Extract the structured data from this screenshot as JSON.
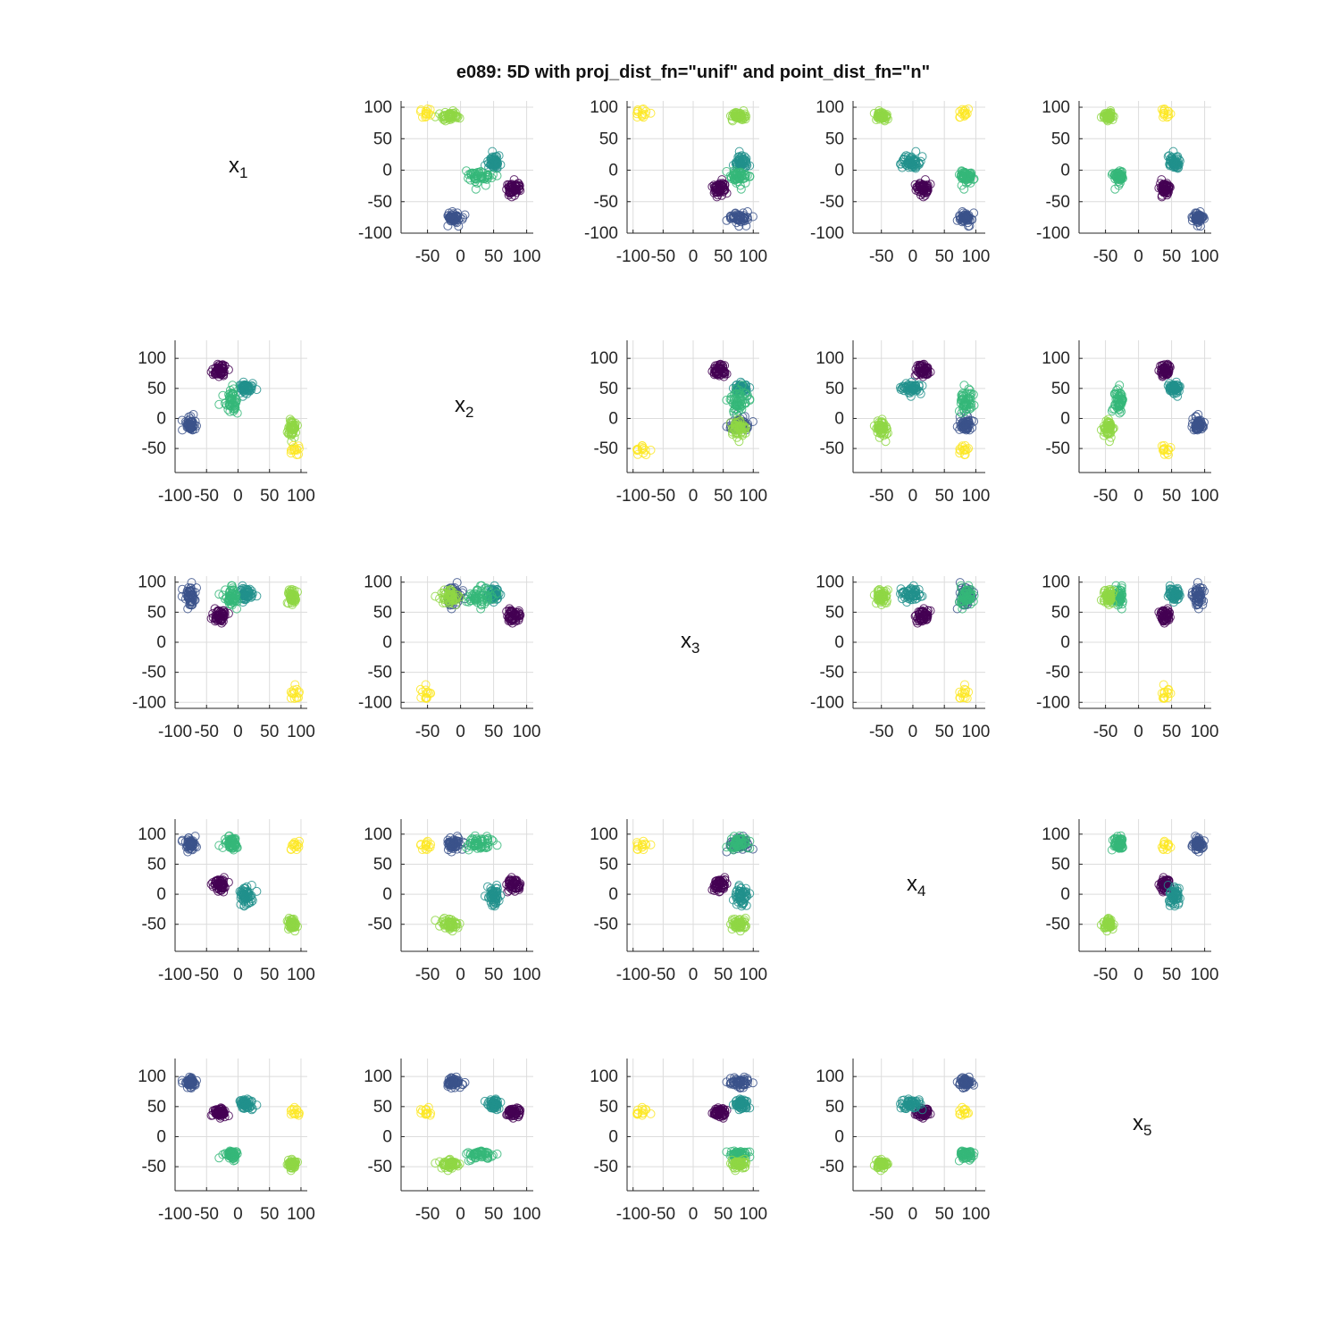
{
  "chart_data": {
    "type": "scatter",
    "title": "e089: 5D with proj_dist_fn=\"unif\" and point_dist_fn=\"n\"",
    "variables": [
      {
        "name": "x",
        "sub": "1"
      },
      {
        "name": "x",
        "sub": "2"
      },
      {
        "name": "x",
        "sub": "3"
      },
      {
        "name": "x",
        "sub": "4"
      },
      {
        "name": "x",
        "sub": "5"
      }
    ],
    "grid": true,
    "clusters": [
      {
        "color": "#440154",
        "center": [
          -30,
          80,
          45,
          15,
          40
        ],
        "spread": [
          6,
          5,
          5,
          6,
          4
        ]
      },
      {
        "color": "#3b528b",
        "center": [
          -75,
          -10,
          75,
          85,
          90
        ],
        "spread": [
          4,
          6,
          9,
          5,
          4
        ]
      },
      {
        "color": "#21918c",
        "center": [
          10,
          50,
          80,
          -3,
          55
        ],
        "spread": [
          6,
          5,
          6,
          8,
          4
        ]
      },
      {
        "color": "#35b779",
        "center": [
          -10,
          30,
          75,
          85,
          -30
        ],
        "spread": [
          5,
          8,
          8,
          5,
          4
        ]
      },
      {
        "color": "#8fd744",
        "center": [
          85,
          -15,
          75,
          -50,
          -45
        ],
        "spread": [
          4,
          8,
          6,
          5,
          4
        ]
      },
      {
        "color": "#fde725",
        "center": [
          90,
          -50,
          -85,
          82,
          42
        ],
        "spread": [
          4,
          4,
          6,
          4,
          3
        ]
      }
    ],
    "axes": [
      {
        "xlim": [
          -100,
          110
        ],
        "xticks": [
          -100,
          -50,
          0,
          50,
          100
        ],
        "ylim": [
          -100,
          110
        ],
        "yticks": [
          -100,
          -50,
          0,
          50,
          100
        ]
      },
      {
        "xlim": [
          -90,
          110
        ],
        "xticks": [
          -50,
          0,
          50,
          100
        ],
        "ylim": [
          -90,
          130
        ],
        "yticks": [
          -50,
          0,
          50,
          100
        ]
      },
      {
        "xlim": [
          -110,
          110
        ],
        "xticks": [
          -100,
          -50,
          0,
          50,
          100
        ],
        "ylim": [
          -110,
          110
        ],
        "yticks": [
          -100,
          -50,
          0,
          50,
          100
        ]
      },
      {
        "xlim": [
          -95,
          115
        ],
        "xticks": [
          -50,
          0,
          50,
          100
        ],
        "ylim": [
          -95,
          125
        ],
        "yticks": [
          -50,
          0,
          50,
          100
        ]
      },
      {
        "xlim": [
          -90,
          110
        ],
        "xticks": [
          -50,
          0,
          50,
          100
        ],
        "ylim": [
          -90,
          130
        ],
        "yticks": [
          -50,
          0,
          50,
          100
        ]
      }
    ]
  }
}
